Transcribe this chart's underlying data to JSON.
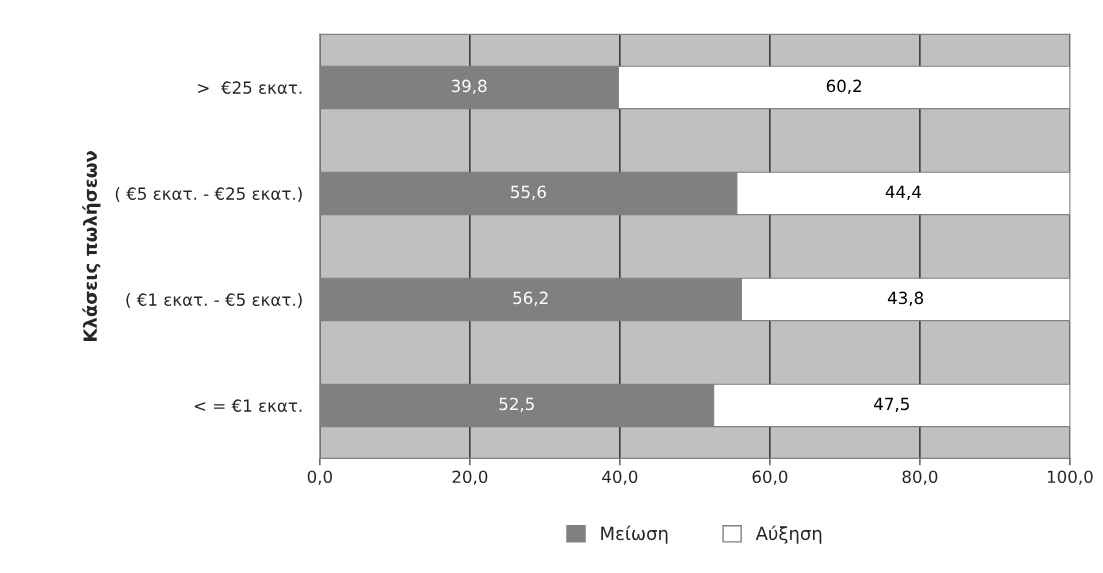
{
  "chart_data": {
    "type": "bar",
    "orientation": "horizontal",
    "stacked": true,
    "ylabel": "Κλάσεις πωλήσεων",
    "categories": [
      ">  €25 εκατ.",
      "( €5 εκατ. - €25 εκατ.)",
      "( €1 εκατ. - €5 εκατ.)",
      "< = €1 εκατ."
    ],
    "series": [
      {
        "name": "Μείωση",
        "color": "#808080",
        "values": [
          39.8,
          55.6,
          56.2,
          52.5
        ],
        "value_labels": [
          "39,8",
          "55,6",
          "56,2",
          "52,5"
        ]
      },
      {
        "name": "Αύξηση",
        "color": "#ffffff",
        "values": [
          60.2,
          44.4,
          43.8,
          47.5
        ],
        "value_labels": [
          "60,2",
          "44,4",
          "43,8",
          "47,5"
        ]
      }
    ],
    "xlim": [
      0,
      100
    ],
    "xticks": [
      {
        "value": 0,
        "label": "0,0"
      },
      {
        "value": 20,
        "label": "20,0"
      },
      {
        "value": 40,
        "label": "40,0"
      },
      {
        "value": 60,
        "label": "60,0"
      },
      {
        "value": 80,
        "label": "80,0"
      },
      {
        "value": 100,
        "label": "100,0"
      }
    ],
    "grid": "x",
    "legend": "bottom"
  }
}
